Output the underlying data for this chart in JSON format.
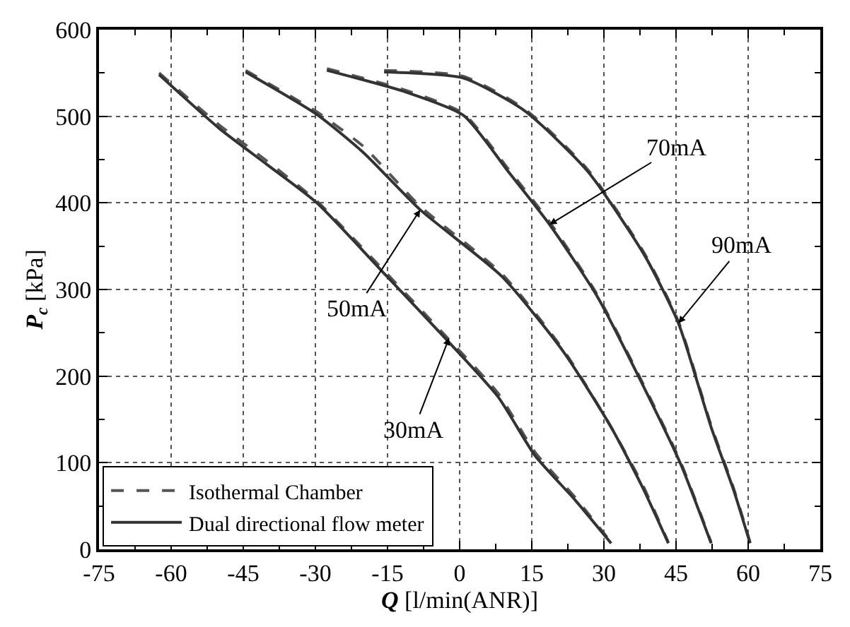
{
  "chart_data": {
    "type": "line",
    "xlabel": "Q [l/min(ANR)]",
    "ylabel": "P$_{c}$ [kPa]",
    "xlim": [
      -75,
      75
    ],
    "ylim": [
      0,
      600
    ],
    "xticks": [
      -75,
      -60,
      -45,
      -30,
      -15,
      0,
      15,
      30,
      45,
      60,
      75
    ],
    "yticks": [
      0,
      100,
      200,
      300,
      400,
      500,
      600
    ],
    "grid": true,
    "legend": "bottom left",
    "marker": "none",
    "series": [
      {
        "name": "Isothermal Chamber",
        "color": "#555555",
        "line_style": "dashed",
        "x": [
          -62.5,
          -50,
          -40,
          -29.7,
          -15.1,
          -2.2,
          8,
          15.7,
          24,
          31.5
        ],
        "values": [
          550,
          490,
          448,
          402,
          318,
          242,
          180,
          112,
          60,
          8
        ]
      },
      {
        "name": "Dual directional flow meter",
        "color": "#333333",
        "line_style": "solid",
        "x": [
          -62.5,
          -50,
          -40,
          -29.7,
          -15.1,
          -2.2,
          8,
          15.7,
          24,
          31.5
        ],
        "values": [
          548,
          486,
          444,
          400,
          315,
          239,
          176,
          108,
          57,
          7
        ]
      },
      {
        "color": "#555555",
        "line_style": "dashed",
        "x": [
          -44.5,
          -29.7,
          -20,
          -8.2,
          8.8,
          21.6,
          31.5,
          38,
          43.4
        ],
        "values": [
          553,
          505,
          465,
          396,
          318,
          230,
          141,
          75,
          8
        ]
      },
      {
        "color": "#333333",
        "line_style": "solid",
        "x": [
          -44.5,
          -29.7,
          -20,
          -8.2,
          8.8,
          21.6,
          31.5,
          38,
          43.4
        ],
        "values": [
          551,
          502,
          458,
          392,
          315,
          228,
          141,
          72,
          7
        ]
      },
      {
        "color": "#555555",
        "line_style": "dashed",
        "x": [
          -27.6,
          -11.2,
          0.8,
          10,
          18.7,
          28.5,
          38.6,
          46,
          52.3
        ],
        "values": [
          555,
          530,
          503,
          440,
          378,
          295,
          186,
          100,
          8
        ]
      },
      {
        "color": "#333333",
        "line_style": "solid",
        "x": [
          -27.6,
          -11.2,
          0.8,
          10,
          18.7,
          28.5,
          38.6,
          46,
          52.3
        ],
        "values": [
          553,
          528,
          501,
          437,
          375,
          293,
          184,
          98,
          7
        ]
      },
      {
        "color": "#555555",
        "line_style": "dashed",
        "x": [
          -15.7,
          0.8,
          13.6,
          26.7,
          38.6,
          45.5,
          52.3,
          57,
          60.4
        ],
        "values": [
          553,
          546,
          508,
          438,
          340,
          263,
          143,
          70,
          8
        ]
      },
      {
        "color": "#333333",
        "line_style": "solid",
        "x": [
          -15.7,
          0.8,
          13.6,
          26.7,
          38.6,
          45.5,
          52.3,
          57,
          60.4
        ],
        "values": [
          551,
          544,
          506,
          436,
          338,
          261,
          141,
          68,
          7
        ]
      }
    ],
    "annotations": [
      {
        "text": "30mA",
        "x": -2.2,
        "y": 244
      },
      {
        "text": "50mA",
        "x": -8.2,
        "y": 392
      },
      {
        "text": "70mA",
        "x": 18.7,
        "y": 375
      },
      {
        "text": "90mA",
        "x": 45.5,
        "y": 261
      }
    ]
  }
}
